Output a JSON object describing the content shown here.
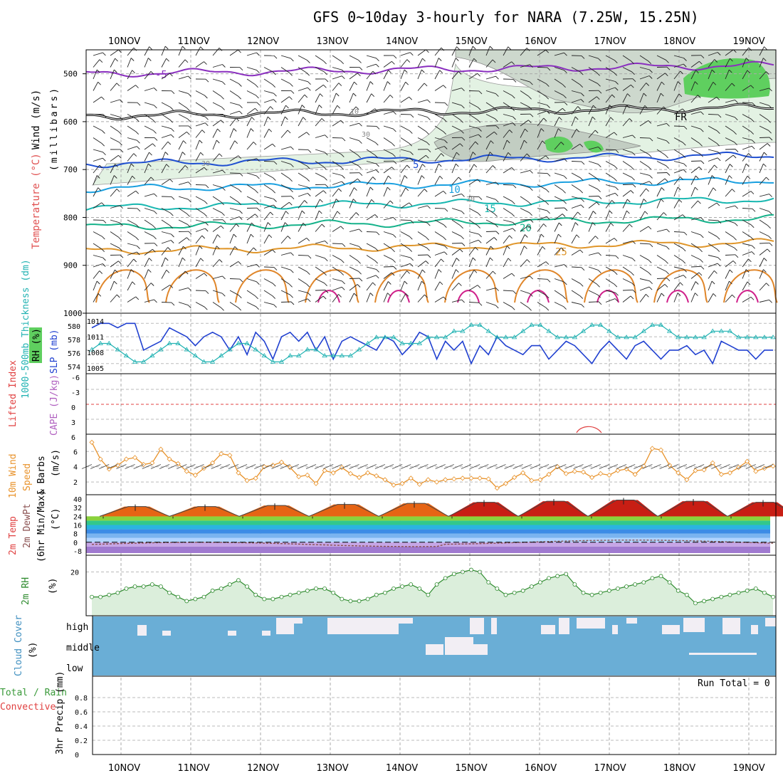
{
  "title": "GFS 0~10day 3-hourly for NARA (7.25W, 15.25N)",
  "dates": [
    "10NOV",
    "11NOV",
    "12NOV",
    "13NOV",
    "14NOV",
    "15NOV",
    "16NOV",
    "17NOV",
    "18NOV",
    "19NOV"
  ],
  "run_total_label": "Run Total = 0",
  "colors": {
    "rh_green_light": "#e3f2e3",
    "rh_green_mid": "#c9c9c9",
    "rh_green_dark": "#5fcf5f",
    "cloud_blue": "#6aaed6",
    "thickness_cyan": "#20b2b2",
    "slp_blue": "#2040d0",
    "wind_orange": "#e8922a",
    "rh2m_green": "#2e8b2e"
  },
  "chart_data": [
    {
      "panel": "upper-air",
      "type": "contour",
      "ylabel_parts": [
        "Wind (m/s)",
        "Temperature (°C)",
        "RH (%)",
        "(millibars)"
      ],
      "yticks": [
        500,
        600,
        700,
        800,
        900,
        1000
      ],
      "ylim": [
        1000,
        450
      ],
      "temperature_contours": [
        {
          "label": "-5",
          "level": 500
        },
        {
          "label": "FR",
          "level": 588
        },
        {
          "label": "5",
          "level": 688
        },
        {
          "label": "10",
          "level": 740
        },
        {
          "label": "15",
          "level": 780
        },
        {
          "label": "20",
          "level": 820
        },
        {
          "label": "25",
          "level": 870
        }
      ],
      "rh_labels": [
        "10",
        "30",
        "30",
        "30"
      ]
    },
    {
      "panel": "thickness-slp",
      "type": "line",
      "ylabel_left": "1000-500mb Thickness (dm)",
      "ylabel_right": "SLP (mb)",
      "left_ticks": [
        "580",
        "578",
        "576",
        "574"
      ],
      "right_ticks": [
        "1014",
        "1011",
        "1008",
        "1005"
      ],
      "series": [
        {
          "name": "SLP (mb)",
          "values": [
            1013,
            1014,
            1014,
            1013,
            1014,
            1014,
            1008,
            1009,
            1010,
            1013,
            1012,
            1011,
            1009,
            1011,
            1012,
            1011,
            1008,
            1011,
            1007,
            1012,
            1010,
            1006,
            1011,
            1012,
            1010,
            1012,
            1008,
            1011,
            1006,
            1010,
            1011,
            1010,
            1009,
            1008,
            1011,
            1010,
            1007,
            1009,
            1012,
            1011,
            1006,
            1010,
            1008,
            1010,
            1005,
            1009,
            1007,
            1011,
            1009,
            1008,
            1007,
            1009,
            1009,
            1006,
            1008,
            1010,
            1009,
            1007,
            1005,
            1008,
            1010,
            1008,
            1006,
            1009,
            1010,
            1008,
            1006,
            1008,
            1008,
            1009,
            1007,
            1008,
            1005,
            1010,
            1009,
            1008,
            1008,
            1006,
            1008,
            1008
          ]
        },
        {
          "name": "Thickness (dm)",
          "values": [
            576,
            577,
            577,
            576,
            575,
            574,
            574,
            575,
            576,
            577,
            577,
            576,
            575,
            574,
            574,
            575,
            576,
            577,
            577,
            576,
            575,
            574,
            574,
            575,
            575,
            576,
            576,
            575,
            575,
            575,
            575,
            576,
            577,
            578,
            578,
            578,
            577,
            577,
            577,
            578,
            578,
            578,
            579,
            579,
            580,
            580,
            579,
            578,
            578,
            578,
            579,
            580,
            580,
            579,
            578,
            578,
            578,
            579,
            580,
            580,
            579,
            578,
            578,
            578,
            579,
            580,
            580,
            579,
            578,
            578,
            578,
            578,
            579,
            579,
            579,
            578,
            578,
            578,
            578,
            578
          ]
        }
      ]
    },
    {
      "panel": "cape-li",
      "type": "line",
      "ylabel_left": "Lifted Index",
      "ylabel_right": "CAPE (J/kg)",
      "ticks": [
        "-6",
        "-3",
        "0",
        "3",
        "6"
      ]
    },
    {
      "panel": "10m-wind",
      "type": "line",
      "ylabel": "10m Wind Speed & Barbs (m/s)",
      "ylabel_parts": [
        "10m Wind",
        "Speed",
        "& Barbs",
        "(m/s)"
      ],
      "yticks": [
        2,
        4,
        6
      ],
      "series": [
        {
          "name": "10m Wind Speed",
          "values": [
            7.2,
            5.0,
            3.7,
            4.2,
            5.0,
            5.2,
            4.3,
            4.5,
            6.3,
            5.0,
            4.4,
            3.4,
            2.9,
            3.8,
            4.5,
            5.7,
            5.5,
            3.2,
            2.2,
            2.5,
            4.0,
            4.2,
            4.6,
            3.9,
            2.7,
            2.9,
            1.8,
            3.5,
            3.2,
            3.9,
            3.1,
            2.6,
            3.2,
            2.8,
            2.3,
            1.6,
            1.8,
            2.5,
            1.7,
            2.3,
            2.0,
            2.3,
            2.4,
            2.5,
            2.5,
            2.5,
            2.4,
            1.2,
            1.8,
            2.6,
            3.2,
            2.2,
            2.3,
            3.0,
            4.0,
            3.1,
            3.4,
            3.3,
            2.6,
            3.1,
            2.9,
            3.5,
            3.7,
            3.0,
            4.1,
            6.4,
            6.2,
            4.2,
            3.2,
            2.3,
            3.5,
            3.6,
            4.5,
            3.0,
            3.2,
            3.9,
            4.7,
            3.4,
            3.8,
            4.1
          ]
        }
      ]
    },
    {
      "panel": "2m-temp",
      "type": "area",
      "ylabel": "2m Temp 2m DewPt (6hr Min/Max) (°C)",
      "ylabel_parts": [
        "2m Temp",
        "2m DewPt",
        "(6hr Min/Max)",
        "(°C)"
      ],
      "yticks": [
        40,
        32,
        24,
        16,
        8,
        0,
        -8
      ],
      "daily_max": [
        33,
        33,
        34,
        35,
        36,
        37,
        38,
        39,
        38,
        37
      ],
      "daily_min": [
        24,
        24,
        24,
        24,
        24,
        24,
        24,
        24,
        24,
        24
      ]
    },
    {
      "panel": "2m-rh",
      "type": "area",
      "ylabel": "2m RH (%)",
      "yticks": [
        20
      ],
      "series": [
        {
          "name": "2m RH",
          "values": [
            8,
            8,
            9,
            10,
            12,
            13,
            13,
            14,
            13,
            10,
            8,
            6,
            7,
            8,
            11,
            12,
            14,
            16,
            13,
            9,
            7,
            7,
            8,
            9,
            10,
            11,
            12,
            12,
            10,
            7,
            6,
            6,
            7,
            9,
            10,
            12,
            13,
            14,
            12,
            9,
            14,
            17,
            19,
            20,
            21,
            20,
            15,
            12,
            9,
            10,
            11,
            13,
            15,
            17,
            18,
            19,
            14,
            10,
            9,
            10,
            11,
            12,
            13,
            14,
            15,
            17,
            18,
            15,
            11,
            9,
            5,
            6,
            7,
            8,
            9,
            10,
            11,
            12,
            10,
            8
          ]
        }
      ]
    },
    {
      "panel": "cloud-cover",
      "type": "heatmap",
      "ylabel": "Cloud Cover (%)",
      "levels": [
        "high",
        "middle",
        "low"
      ]
    },
    {
      "panel": "precip",
      "type": "bar",
      "ylabel": "3hr Precip (mm)",
      "legend": [
        "Total / Rain",
        "Convective"
      ],
      "yticks": [
        "0",
        "0.2",
        "0.4",
        "0.6",
        "0.8"
      ],
      "ylim": [
        0,
        1.0
      ],
      "values": []
    }
  ]
}
